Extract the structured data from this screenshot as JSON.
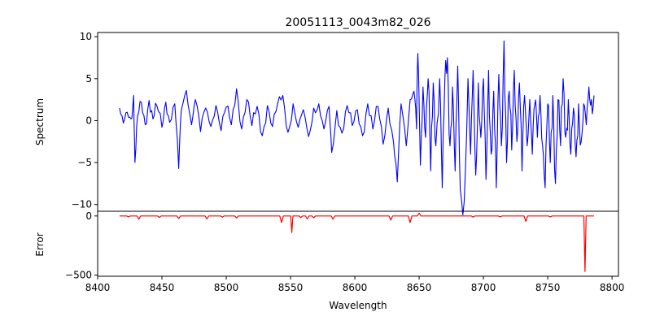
{
  "chart_data": {
    "type": "line",
    "title": "20051113_0043m82_026",
    "xlabel": "Wavelength",
    "xlim": [
      8400,
      8805
    ],
    "xticks": [
      8400,
      8450,
      8500,
      8550,
      8600,
      8650,
      8700,
      8750,
      8800
    ],
    "grid": false,
    "panels": [
      {
        "name": "spectrum",
        "ylabel": "Spectrum",
        "ylim": [
          -10.8,
          10.5
        ],
        "yticks": [
          10,
          5,
          0,
          -5,
          -10
        ],
        "ytick_labels": [
          "10",
          "5",
          "0",
          "−5",
          "−10"
        ],
        "series": [
          {
            "color": "#0000ff",
            "x_range": [
              8417,
              8786
            ],
            "points": [
              [
                8417,
                1.5
              ],
              [
                8420,
                -0.3
              ],
              [
                8423,
                1.0
              ],
              [
                8426,
                0.2
              ],
              [
                8428,
                3.0
              ],
              [
                8429,
                -5.0
              ],
              [
                8431,
                0.5
              ],
              [
                8434,
                2.2
              ],
              [
                8437,
                -0.5
              ],
              [
                8440,
                2.4
              ],
              [
                8443,
                0.2
              ],
              [
                8446,
                1.8
              ],
              [
                8450,
                -0.8
              ],
              [
                8453,
                2.2
              ],
              [
                8456,
                -0.2
              ],
              [
                8460,
                2.0
              ],
              [
                8463,
                -5.7
              ],
              [
                8465,
                1.2
              ],
              [
                8469,
                3.6
              ],
              [
                8473,
                -0.5
              ],
              [
                8476,
                2.5
              ],
              [
                8480,
                -1.3
              ],
              [
                8484,
                1.5
              ],
              [
                8488,
                -0.7
              ],
              [
                8492,
                1.8
              ],
              [
                8496,
                -1.2
              ],
              [
                8500,
                1.6
              ],
              [
                8504,
                -0.5
              ],
              [
                8508,
                3.8
              ],
              [
                8512,
                -1.0
              ],
              [
                8516,
                2.5
              ],
              [
                8520,
                -0.6
              ],
              [
                8524,
                1.7
              ],
              [
                8528,
                -1.8
              ],
              [
                8532,
                1.8
              ],
              [
                8536,
                -0.7
              ],
              [
                8540,
                2.0
              ],
              [
                8544,
                3.0
              ],
              [
                8548,
                -1.4
              ],
              [
                8552,
                2.0
              ],
              [
                8556,
                -0.8
              ],
              [
                8560,
                1.3
              ],
              [
                8564,
                -1.9
              ],
              [
                8568,
                1.5
              ],
              [
                8572,
                2.0
              ],
              [
                8576,
                -1.0
              ],
              [
                8580,
                1.7
              ],
              [
                8582,
                -3.8
              ],
              [
                8586,
                1.2
              ],
              [
                8590,
                -1.5
              ],
              [
                8594,
                1.8
              ],
              [
                8598,
                -0.6
              ],
              [
                8602,
                1.3
              ],
              [
                8606,
                -1.8
              ],
              [
                8610,
                2.0
              ],
              [
                8614,
                -1.0
              ],
              [
                8618,
                1.7
              ],
              [
                8622,
                -2.8
              ],
              [
                8626,
                1.5
              ],
              [
                8630,
                -2.5
              ],
              [
                8633,
                -7.3
              ],
              [
                8636,
                2.0
              ],
              [
                8640,
                -3.0
              ],
              [
                8643,
                2.5
              ],
              [
                8646,
                3.5
              ],
              [
                8648,
                -1.0
              ],
              [
                8649,
                8.0
              ],
              [
                8651,
                -5.3
              ],
              [
                8653,
                4.0
              ],
              [
                8655,
                -2.0
              ],
              [
                8657,
                5.0
              ],
              [
                8659,
                -6.0
              ],
              [
                8661,
                4.5
              ],
              [
                8663,
                -3.0
              ],
              [
                8666,
                5.0
              ],
              [
                8668,
                -8.0
              ],
              [
                8670,
                5.0
              ],
              [
                8672,
                7.5
              ],
              [
                8674,
                -3.0
              ],
              [
                8676,
                4.0
              ],
              [
                8678,
                -6.0
              ],
              [
                8680,
                6.5
              ],
              [
                8682,
                -8.2
              ],
              [
                8685,
                -9.7
              ],
              [
                8688,
                5.0
              ],
              [
                8690,
                -4.0
              ],
              [
                8692,
                6.0
              ],
              [
                8694,
                -6.5
              ],
              [
                8696,
                4.5
              ],
              [
                8698,
                -2.0
              ],
              [
                8700,
                5.0
              ],
              [
                8702,
                -7.0
              ],
              [
                8704,
                6.0
              ],
              [
                8706,
                -4.0
              ],
              [
                8708,
                3.5
              ],
              [
                8710,
                -8.0
              ],
              [
                8712,
                5.5
              ],
              [
                8714,
                -3.0
              ],
              [
                8716,
                9.5
              ],
              [
                8718,
                -5.0
              ],
              [
                8720,
                3.5
              ],
              [
                8722,
                -3.5
              ],
              [
                8724,
                6.0
              ],
              [
                8726,
                -2.5
              ],
              [
                8728,
                4.5
              ],
              [
                8730,
                -6.0
              ],
              [
                8732,
                3.0
              ],
              [
                8734,
                -3.0
              ],
              [
                8736,
                2.5
              ],
              [
                8738,
                -4.0
              ],
              [
                8740,
                2.0
              ],
              [
                8742,
                -2.0
              ],
              [
                8744,
                3.0
              ],
              [
                8746,
                -3.0
              ],
              [
                8748,
                -8.0
              ],
              [
                8750,
                2.0
              ],
              [
                8752,
                -5.0
              ],
              [
                8754,
                3.0
              ],
              [
                8756,
                -7.5
              ],
              [
                8758,
                2.5
              ],
              [
                8760,
                -3.0
              ],
              [
                8762,
                5.0
              ],
              [
                8764,
                -2.0
              ],
              [
                8766,
                2.5
              ],
              [
                8768,
                -4.0
              ],
              [
                8770,
                1.5
              ],
              [
                8772,
                -4.3
              ],
              [
                8774,
                2.0
              ],
              [
                8776,
                -2.5
              ],
              [
                8778,
                2.0
              ],
              [
                8780,
                -0.5
              ],
              [
                8782,
                4.0
              ],
              [
                8784,
                2.5
              ],
              [
                8786,
                3.0
              ]
            ]
          }
        ]
      },
      {
        "name": "error",
        "ylabel": "Error",
        "ylim": [
          -510,
          40
        ],
        "yticks": [
          0,
          -500
        ],
        "ytick_labels": [
          "0",
          "−500"
        ],
        "series": [
          {
            "color": "#ff0000",
            "baseline": 0,
            "x_range": [
              8417,
              8786
            ],
            "dips": [
              [
                8424,
                -7
              ],
              [
                8432,
                -28
              ],
              [
                8448,
                -12
              ],
              [
                8463,
                -22
              ],
              [
                8485,
                -25
              ],
              [
                8497,
                -10
              ],
              [
                8508,
                -18
              ],
              [
                8543,
                -55
              ],
              [
                8551,
                -140
              ],
              [
                8558,
                -12
              ],
              [
                8563,
                -25
              ],
              [
                8568,
                -16
              ],
              [
                8583,
                -28
              ],
              [
                8628,
                -35
              ],
              [
                8643,
                -55
              ],
              [
                8650,
                25
              ],
              [
                8692,
                -10
              ],
              [
                8713,
                -8
              ],
              [
                8733,
                -45
              ],
              [
                8752,
                -8
              ],
              [
                8779,
                -470
              ]
            ]
          }
        ]
      }
    ]
  }
}
